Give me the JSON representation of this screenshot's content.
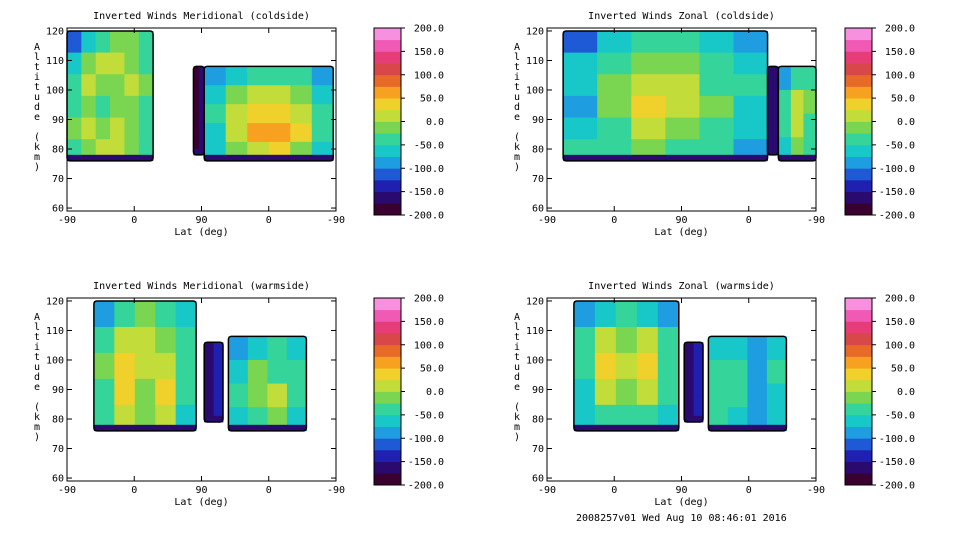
{
  "chart_data": [
    {
      "type": "heatmap",
      "title": "Inverted Winds Meridional (coldside)",
      "xlabel": "Lat (deg)",
      "ylabel": "Altitude (km)",
      "x_ticks": [
        "-90",
        "0",
        "90",
        "0",
        "-90"
      ],
      "y_ticks": [
        60,
        70,
        80,
        90,
        100,
        110,
        120
      ],
      "ylim": [
        59,
        121
      ],
      "colorbar_ticks": [
        "200.0",
        "150.0",
        "100.0",
        "50.0",
        "0.0",
        "-50.0",
        "-100.0",
        "-150.0",
        "-200.0"
      ],
      "colorbar_range": [
        -200,
        200
      ],
      "regions": [
        {
          "x_range": [
            0.0,
            0.32
          ],
          "alt_range": [
            76,
            120
          ],
          "values": [
            [
              -120,
              -60,
              -30,
              -10,
              -20,
              -50
            ],
            [
              -70,
              -20,
              10,
              0,
              -10,
              -30
            ],
            [
              -40,
              0,
              -20,
              -10,
              5,
              -20
            ],
            [
              -30,
              -10,
              -40,
              -20,
              -10,
              -40
            ],
            [
              -20,
              5,
              -10,
              10,
              -20,
              -30
            ],
            [
              -40,
              -20,
              0,
              20,
              -10,
              -40
            ]
          ]
        },
        {
          "x_range": [
            0.47,
            0.51
          ],
          "alt_range": [
            78,
            108
          ],
          "values": [
            [
              -180,
              -170
            ],
            [
              -180,
              -170
            ],
            [
              -180,
              -170
            ],
            [
              -180,
              -170
            ]
          ]
        },
        {
          "x_range": [
            0.51,
            0.99
          ],
          "alt_range": [
            76,
            108
          ],
          "values": [
            [
              -100,
              -60,
              -40,
              -30,
              -50,
              -80
            ],
            [
              -60,
              -20,
              0,
              10,
              -20,
              -60
            ],
            [
              -50,
              0,
              30,
              40,
              10,
              -50
            ],
            [
              -60,
              10,
              50,
              60,
              30,
              -40
            ],
            [
              -70,
              -10,
              20,
              30,
              -10,
              -60
            ]
          ]
        }
      ]
    },
    {
      "type": "heatmap",
      "title": "Inverted Winds Zonal (coldside)",
      "xlabel": "Lat (deg)",
      "ylabel": "Altitude (km)",
      "x_ticks": [
        "-90",
        "0",
        "90",
        "0",
        "-90"
      ],
      "y_ticks": [
        60,
        70,
        80,
        90,
        100,
        110,
        120
      ],
      "ylim": [
        59,
        121
      ],
      "colorbar_ticks": [
        "200.0",
        "150.0",
        "100.0",
        "50.0",
        "0.0",
        "-50.0",
        "-100.0",
        "-150.0",
        "-200.0"
      ],
      "colorbar_range": [
        -200,
        200
      ],
      "regions": [
        {
          "x_range": [
            0.06,
            0.82
          ],
          "alt_range": [
            76,
            120
          ],
          "values": [
            [
              -110,
              -60,
              -40,
              -40,
              -60,
              -80
            ],
            [
              -60,
              -30,
              -10,
              -20,
              -40,
              -60
            ],
            [
              -70,
              -10,
              20,
              10,
              -30,
              -50
            ],
            [
              -80,
              -20,
              30,
              20,
              -20,
              -60
            ],
            [
              -60,
              -30,
              0,
              -10,
              -40,
              -70
            ],
            [
              -50,
              -40,
              -20,
              -30,
              -50,
              -80
            ]
          ]
        },
        {
          "x_range": [
            0.82,
            0.86
          ],
          "alt_range": [
            78,
            108
          ],
          "values": [
            [
              -170,
              -160
            ],
            [
              -170,
              -160
            ],
            [
              -170,
              -160
            ]
          ]
        },
        {
          "x_range": [
            0.86,
            1.0
          ],
          "alt_range": [
            76,
            108
          ],
          "values": [
            [
              -90,
              -50,
              -40
            ],
            [
              -50,
              10,
              -20
            ],
            [
              -40,
              20,
              -30
            ],
            [
              -60,
              -10,
              -50
            ]
          ]
        }
      ]
    },
    {
      "type": "heatmap",
      "title": "Inverted Winds Meridional (warmside)",
      "xlabel": "Lat (deg)",
      "ylabel": "Altitude (km)",
      "x_ticks": [
        "-90",
        "0",
        "90",
        "0",
        "-90"
      ],
      "y_ticks": [
        60,
        70,
        80,
        90,
        100,
        110,
        120
      ],
      "ylim": [
        59,
        121
      ],
      "colorbar_ticks": [
        "200.0",
        "150.0",
        "100.0",
        "50.0",
        "0.0",
        "-50.0",
        "-100.0",
        "-150.0",
        "-200.0"
      ],
      "colorbar_range": [
        -200,
        200
      ],
      "regions": [
        {
          "x_range": [
            0.1,
            0.48
          ],
          "alt_range": [
            76,
            120
          ],
          "values": [
            [
              -90,
              -40,
              -20,
              -30,
              -60
            ],
            [
              -40,
              20,
              0,
              -10,
              -40
            ],
            [
              -20,
              40,
              10,
              20,
              -30
            ],
            [
              -30,
              30,
              -10,
              30,
              -40
            ],
            [
              -50,
              0,
              -20,
              0,
              -60
            ]
          ]
        },
        {
          "x_range": [
            0.51,
            0.58
          ],
          "alt_range": [
            79,
            106
          ],
          "values": [
            [
              -170,
              -150
            ],
            [
              -170,
              -150
            ],
            [
              -170,
              -150
            ]
          ]
        },
        {
          "x_range": [
            0.6,
            0.89
          ],
          "alt_range": [
            76,
            108
          ],
          "values": [
            [
              -80,
              -60,
              -50,
              -70
            ],
            [
              -60,
              -20,
              -30,
              -50
            ],
            [
              -50,
              -10,
              10,
              -40
            ],
            [
              -70,
              -40,
              -20,
              -60
            ]
          ]
        }
      ]
    },
    {
      "type": "heatmap",
      "title": "Inverted Winds Zonal (warmside)",
      "xlabel": "Lat (deg)",
      "ylabel": "Altitude (km)",
      "x_ticks": [
        "-90",
        "0",
        "90",
        "0",
        "-90"
      ],
      "y_ticks": [
        60,
        70,
        80,
        90,
        100,
        110,
        120
      ],
      "ylim": [
        59,
        121
      ],
      "colorbar_ticks": [
        "200.0",
        "150.0",
        "100.0",
        "50.0",
        "0.0",
        "-50.0",
        "-100.0",
        "-150.0",
        "-200.0"
      ],
      "colorbar_range": [
        -200,
        200
      ],
      "regions": [
        {
          "x_range": [
            0.1,
            0.49
          ],
          "alt_range": [
            76,
            120
          ],
          "values": [
            [
              -100,
              -60,
              -50,
              -60,
              -80
            ],
            [
              -50,
              10,
              -10,
              20,
              -50
            ],
            [
              -40,
              30,
              20,
              30,
              -40
            ],
            [
              -60,
              20,
              -20,
              10,
              -50
            ],
            [
              -70,
              -30,
              -40,
              -30,
              -60
            ]
          ]
        },
        {
          "x_range": [
            0.51,
            0.58
          ],
          "alt_range": [
            79,
            106
          ],
          "values": [
            [
              -170,
              -150
            ],
            [
              -170,
              -150
            ],
            [
              -170,
              -150
            ]
          ]
        },
        {
          "x_range": [
            0.6,
            0.89
          ],
          "alt_range": [
            76,
            108
          ],
          "values": [
            [
              -70,
              -60,
              -80,
              -70
            ],
            [
              -40,
              -30,
              -90,
              -50
            ],
            [
              -30,
              -50,
              -100,
              -60
            ],
            [
              -50,
              -60,
              -80,
              -70
            ]
          ]
        }
      ]
    }
  ],
  "footer": "2008257v01 Wed Aug 10 08:46:01 2016",
  "colormap": [
    "#3a0030",
    "#2a0a6e",
    "#1f1fb0",
    "#1e5ad6",
    "#1e9ee0",
    "#18c8c8",
    "#34d49a",
    "#7ad650",
    "#c2dc3a",
    "#f0d02a",
    "#f8a020",
    "#e86a28",
    "#d84848",
    "#e63c78",
    "#f05ab4",
    "#f890e0"
  ]
}
